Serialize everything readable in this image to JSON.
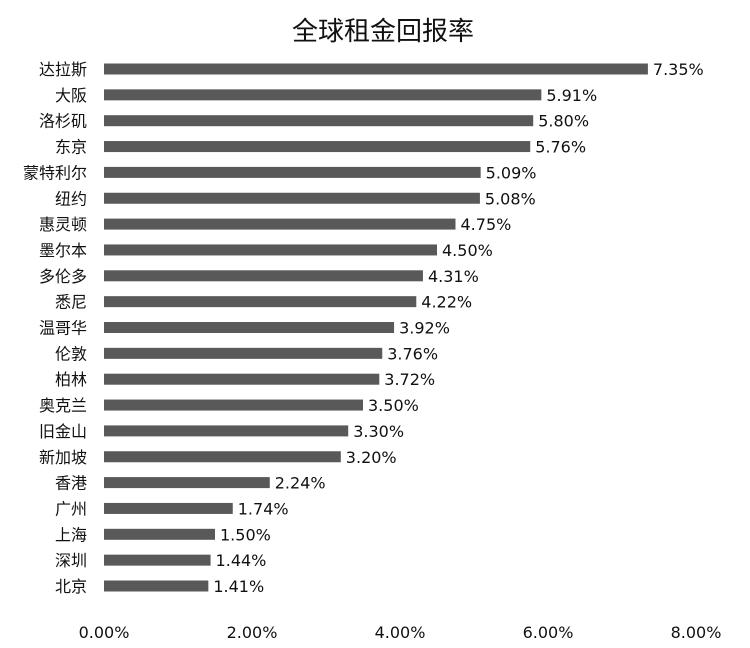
{
  "chart_data": {
    "type": "bar",
    "orientation": "horizontal",
    "title": "全球租金回报率",
    "xlabel": "",
    "ylabel": "",
    "xlim": [
      0,
      8
    ],
    "grid": false,
    "legend": "none",
    "bar_color": "#595959",
    "categories": [
      "达拉斯",
      "大阪",
      "洛杉矶",
      "东京",
      "蒙特利尔",
      "纽约",
      "惠灵顿",
      "墨尔本",
      "多伦多",
      "悉尼",
      "温哥华",
      "伦敦",
      "柏林",
      "奥克兰",
      "旧金山",
      "新加坡",
      "香港",
      "广州",
      "上海",
      "深圳",
      "北京"
    ],
    "values": [
      7.35,
      5.91,
      5.8,
      5.76,
      5.09,
      5.08,
      4.75,
      4.5,
      4.31,
      4.22,
      3.92,
      3.76,
      3.72,
      3.5,
      3.3,
      3.2,
      2.24,
      1.74,
      1.5,
      1.44,
      1.41
    ],
    "value_labels": [
      "7.35%",
      "5.91%",
      "5.80%",
      "5.76%",
      "5.09%",
      "5.08%",
      "4.75%",
      "4.50%",
      "4.31%",
      "4.22%",
      "3.92%",
      "3.76%",
      "3.72%",
      "3.50%",
      "3.30%",
      "3.20%",
      "2.24%",
      "1.74%",
      "1.50%",
      "1.44%",
      "1.41%"
    ],
    "x_ticks": [
      0,
      2,
      4,
      6,
      8
    ],
    "x_tick_labels": [
      "0.00%",
      "2.00%",
      "4.00%",
      "6.00%",
      "8.00%"
    ]
  }
}
